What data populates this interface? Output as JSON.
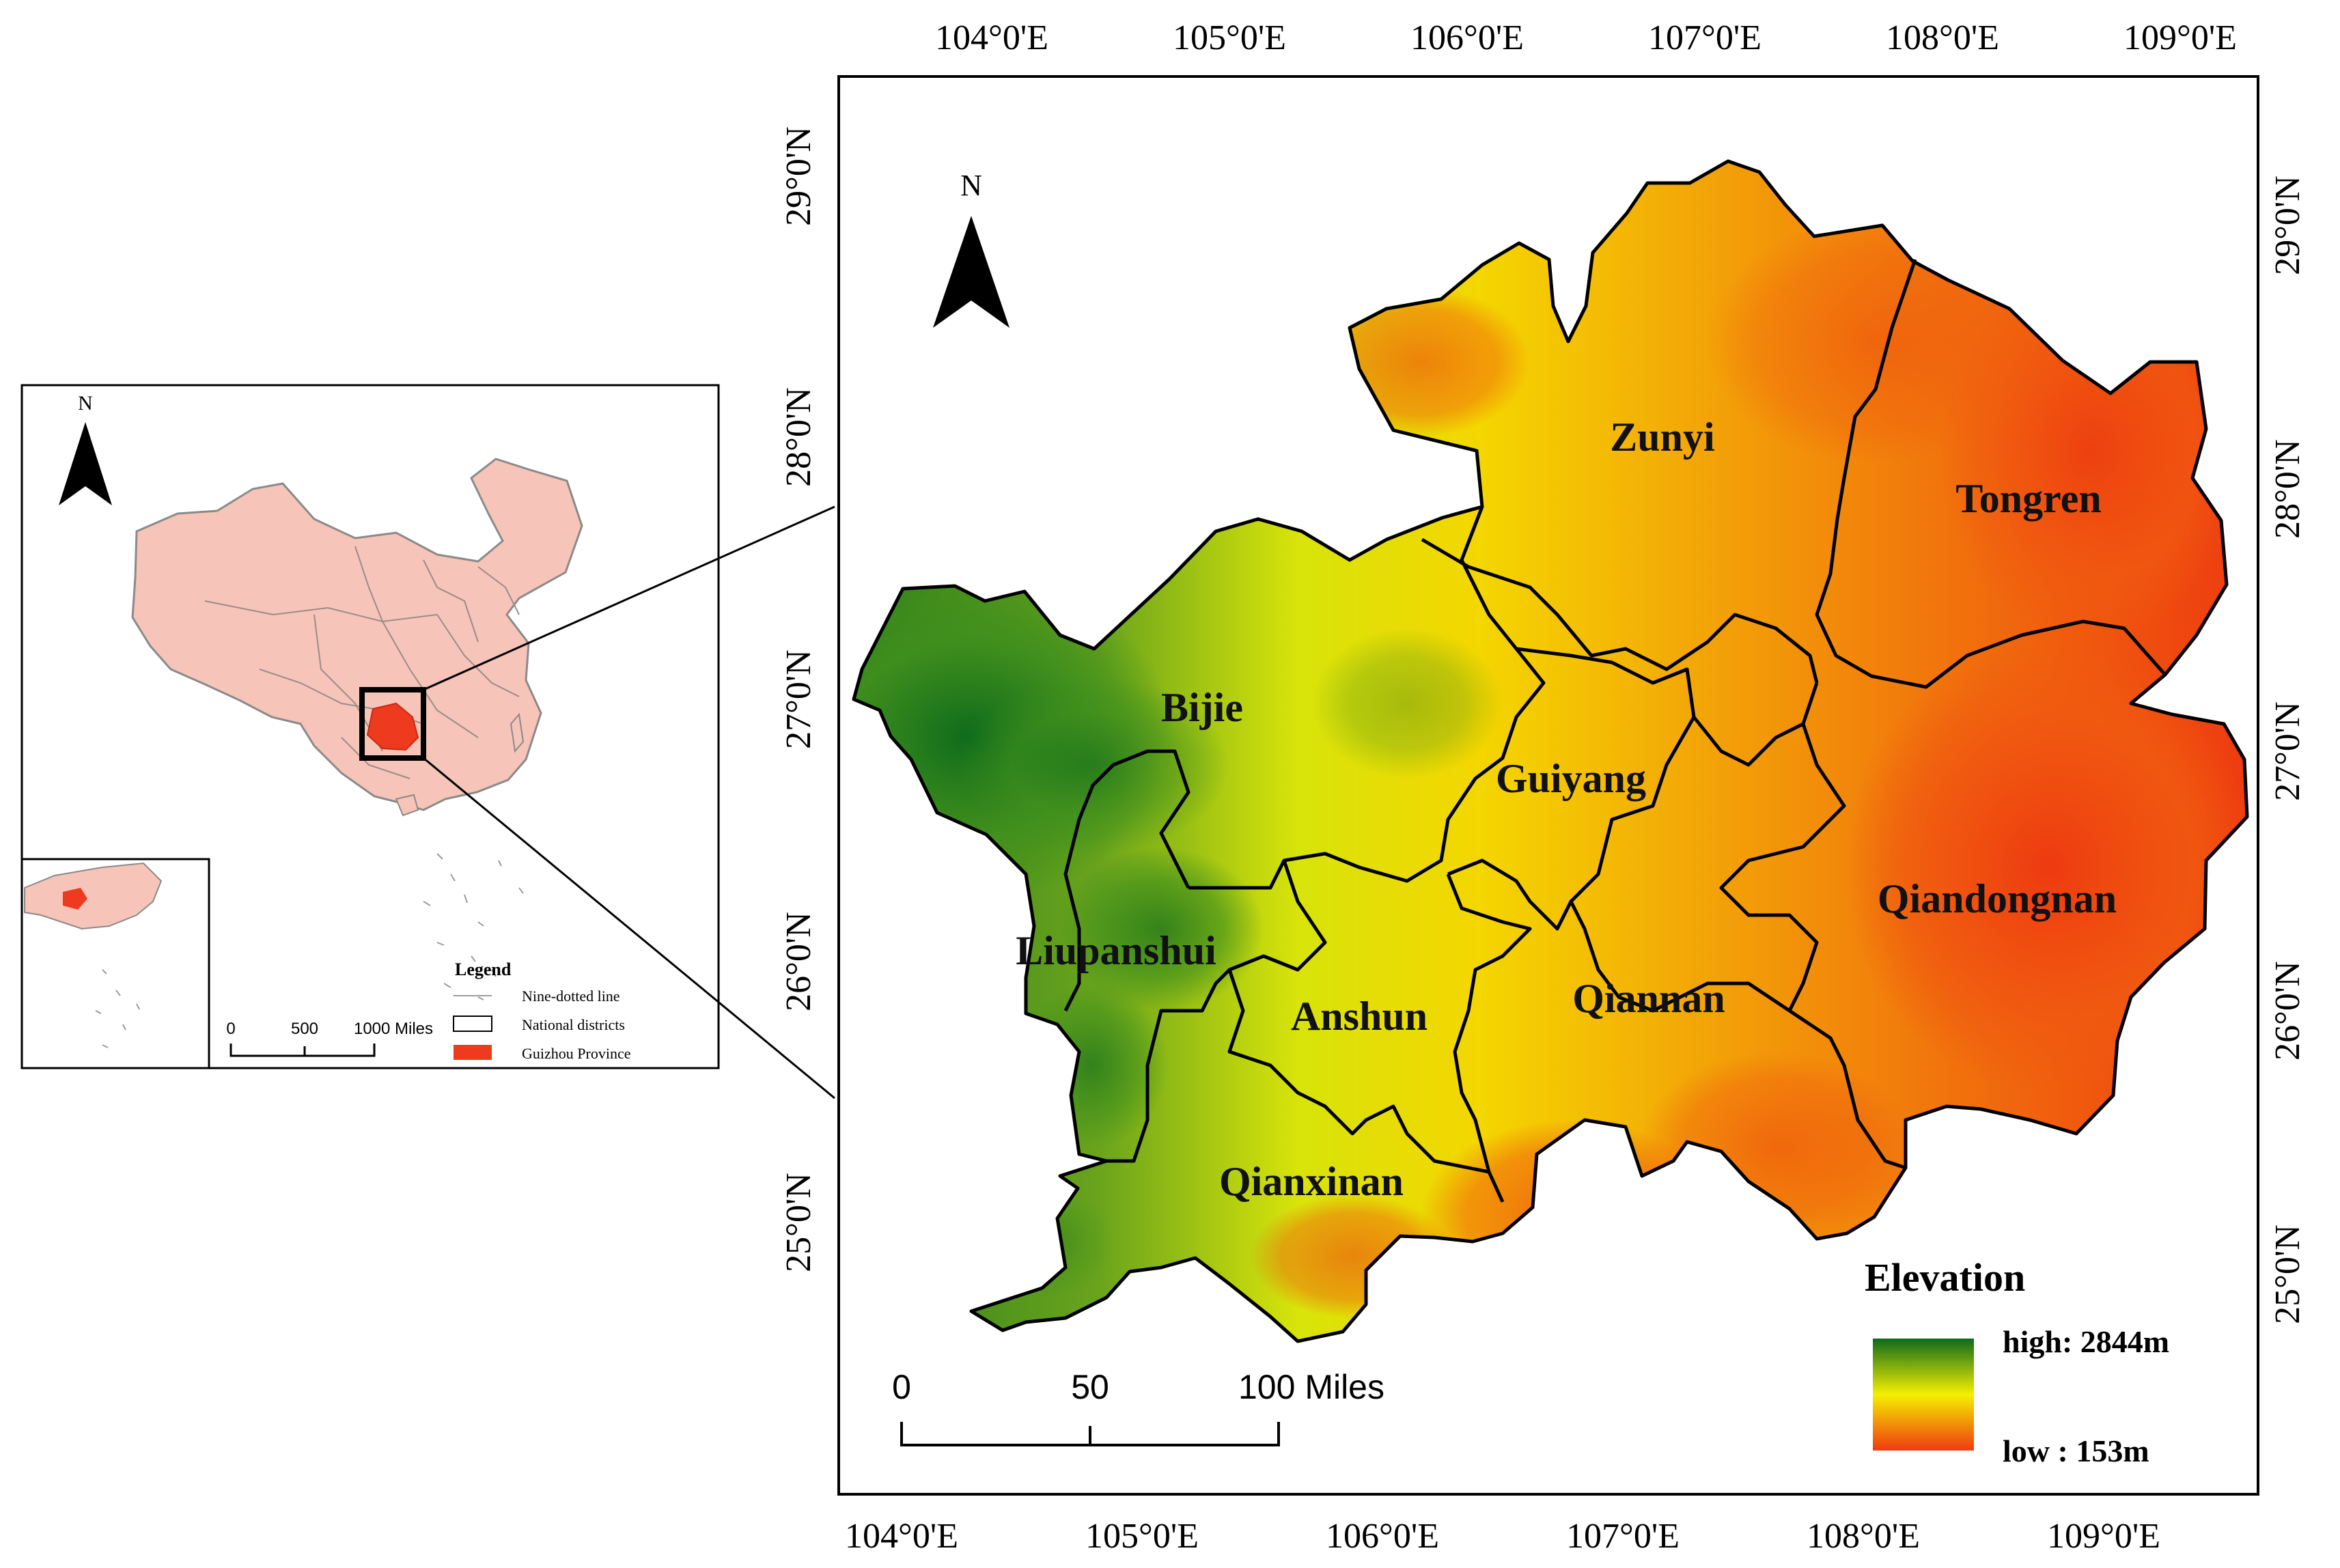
{
  "inset": {
    "north_label": "N",
    "legend_title": "Legend",
    "legend_items": [
      {
        "label": "Nine-dotted line",
        "symbol": "line"
      },
      {
        "label": "National districts",
        "symbol": "box"
      },
      {
        "label": "Guizhou Province",
        "symbol": "fill"
      }
    ],
    "scale_labels": [
      "0",
      "500",
      "1000 Miles"
    ],
    "colors": {
      "china_fill": "#f6c4b8",
      "china_border": "#8a8a8a",
      "guizhou_fill": "#ee3a1e"
    }
  },
  "main": {
    "north_label": "N",
    "top_ticks": [
      "104°0'E",
      "105°0'E",
      "106°0'E",
      "107°0'E",
      "108°0'E",
      "109°0'E"
    ],
    "bottom_ticks": [
      "104°0'E",
      "105°0'E",
      "106°0'E",
      "107°0'E",
      "108°0'E",
      "109°0'E"
    ],
    "left_ticks": [
      "29°0'N",
      "28°0'N",
      "27°0'N",
      "26°0'N",
      "25°0'N"
    ],
    "right_ticks": [
      "29°0'N",
      "28°0'N",
      "27°0'N",
      "26°0'N",
      "25°0'N"
    ],
    "regions": [
      "Zunyi",
      "Tongren",
      "Bijie",
      "Guiyang",
      "Qiandongnan",
      "Liupanshui",
      "Anshun",
      "Qiannan",
      "Qianxinan"
    ],
    "scale_labels": [
      "0",
      "50",
      "100 Miles"
    ],
    "elevation_title": "Elevation",
    "elevation_high": "high: 2844m",
    "elevation_low": "low : 153m",
    "colors": {
      "high": "#0e6b1c",
      "mid": "#f4f000",
      "low": "#f03a10"
    }
  }
}
